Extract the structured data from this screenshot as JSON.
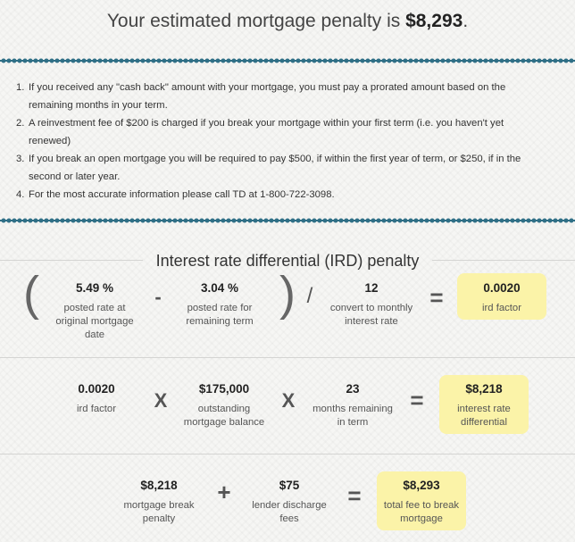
{
  "headline": {
    "prefix": "Your estimated mortgage penalty is ",
    "amount": "$8,293",
    "suffix": "."
  },
  "notes": [
    {
      "num": "1.",
      "lines": [
        "If you received any \"cash back\" amount with your mortgage, you must pay a prorated amount based on the",
        "remaining months in your term."
      ]
    },
    {
      "num": "2.",
      "lines": [
        "A reinvestment fee of $200 is charged if you break your mortgage within your first term (i.e. you haven't yet",
        "renewed)"
      ]
    },
    {
      "num": "3.",
      "lines": [
        "If you break an open mortgage you will be required to pay $500, if within the first year of term, or $250, if in the",
        "second or later year."
      ]
    },
    {
      "num": "4.",
      "lines": [
        "For the most accurate information please call TD at 1-800-722-3098."
      ]
    }
  ],
  "ird": {
    "title": "Interest rate differential (IRD) penalty",
    "row1": {
      "open_paren": "(",
      "close_paren": ")",
      "posted_rate": {
        "value": "5.49 %",
        "label_lines": [
          "posted rate at",
          "original mortgage",
          "date"
        ]
      },
      "minus": "-",
      "remaining_rate": {
        "value": "3.04 %",
        "label_lines": [
          "posted rate for",
          "remaining term"
        ]
      },
      "divide": "/",
      "months": {
        "value": "12",
        "label_lines": [
          "convert to monthly",
          "interest rate"
        ]
      },
      "equals": "=",
      "result": {
        "value": "0.0020",
        "label_lines": [
          "ird factor"
        ]
      }
    },
    "row2": {
      "factor": {
        "value": "0.0020",
        "label_lines": [
          "ird factor"
        ]
      },
      "times1": "X",
      "balance": {
        "value": "$175,000",
        "label_lines": [
          "outstanding",
          "mortgage balance"
        ]
      },
      "times2": "X",
      "months": {
        "value": "23",
        "label_lines": [
          "months remaining",
          "in term"
        ]
      },
      "equals": "=",
      "result": {
        "value": "$8,218",
        "label_lines": [
          "interest rate",
          "differential"
        ]
      }
    },
    "row3": {
      "penalty": {
        "value": "$8,218",
        "label_lines": [
          "mortgage break",
          "penalty"
        ]
      },
      "plus": "+",
      "discharge": {
        "value": "$75",
        "label_lines": [
          "lender discharge",
          "fees"
        ]
      },
      "equals": "=",
      "result": {
        "value": "$8,293",
        "label_lines": [
          "total fee to break",
          "mortgage"
        ]
      }
    }
  },
  "colors": {
    "wave": "#2f6f86",
    "highlight": "#fbf3a8",
    "background": "#f6f6f4"
  }
}
